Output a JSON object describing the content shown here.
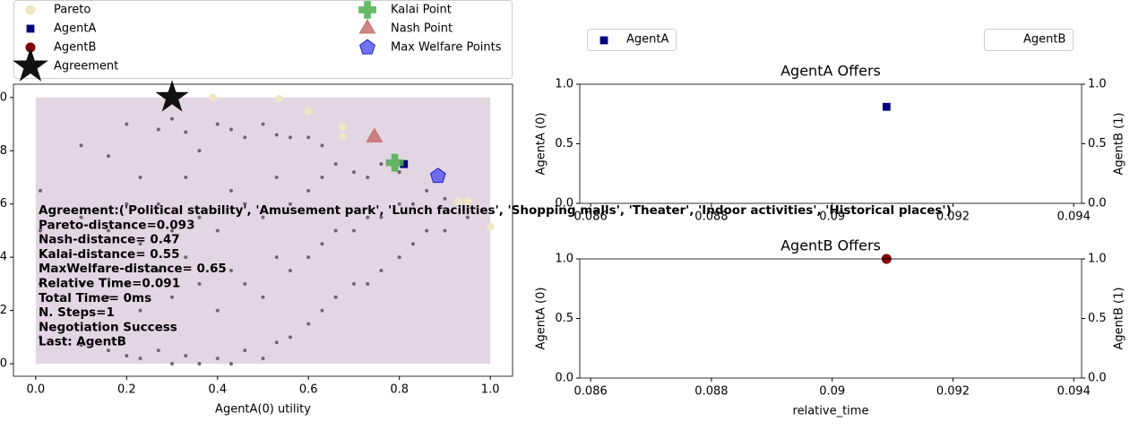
{
  "chart_data": [
    {
      "type": "scatter",
      "xlabel": "AgentA(0) utility",
      "xlim": [
        -0.049,
        1.049
      ],
      "ylim": [
        -0.047,
        1.05
      ],
      "xticks": [
        {
          "value": 0,
          "label": "0.0"
        },
        {
          "value": 0.2,
          "label": "0.2"
        },
        {
          "value": 0.4,
          "label": "0.4"
        },
        {
          "value": 0.6,
          "label": "0.6"
        },
        {
          "value": 0.8,
          "label": "0.8"
        },
        {
          "value": 1,
          "label": "1.0"
        }
      ],
      "yticks": [
        {
          "value": 0,
          "label": "0.0"
        },
        {
          "value": 0.2,
          "label": "0.2"
        },
        {
          "value": 0.4,
          "label": "0.4"
        },
        {
          "value": 0.6,
          "label": "0.6"
        },
        {
          "value": 0.8,
          "label": "0.8"
        },
        {
          "value": 1,
          "label": "1.0"
        }
      ],
      "region_color": "#e2d6e2",
      "series": [
        {
          "color": "#6e6670",
          "marker": "dot",
          "x": [
            0.01,
            0.01,
            0.01,
            0.01,
            0.1,
            0.1,
            0.1,
            0.1,
            0.16,
            0.16,
            0.16,
            0.16,
            0.2,
            0.2,
            0.2,
            0.2,
            0.23,
            0.23,
            0.23,
            0.23,
            0.27,
            0.27,
            0.27,
            0.27,
            0.3,
            0.3,
            0.3,
            0.3,
            0.33,
            0.33,
            0.33,
            0.33,
            0.36,
            0.36,
            0.36,
            0.36,
            0.4,
            0.4,
            0.4,
            0.4,
            0.43,
            0.43,
            0.43,
            0.43,
            0.46,
            0.46,
            0.46,
            0.46,
            0.5,
            0.5,
            0.5,
            0.5,
            0.53,
            0.53,
            0.53,
            0.53,
            0.56,
            0.56,
            0.56,
            0.56,
            0.6,
            0.6,
            0.6,
            0.6,
            0.63,
            0.63,
            0.63,
            0.63,
            0.66,
            0.66,
            0.66,
            0.7,
            0.7,
            0.7,
            0.73,
            0.73,
            0.73,
            0.76,
            0.76,
            0.76,
            0.8,
            0.8,
            0.8,
            0.83,
            0.83,
            0.86,
            0.86,
            0.9,
            0.9,
            0.95,
            0.95
          ],
          "values": [
            0.1,
            0.3,
            0.5,
            0.65,
            0.07,
            0.3,
            0.55,
            0.82,
            0.05,
            0.25,
            0.5,
            0.78,
            0.03,
            0.3,
            0.6,
            0.9,
            0.02,
            0.2,
            0.45,
            0.7,
            0.05,
            0.35,
            0.6,
            0.88,
            0.0,
            0.25,
            0.5,
            0.92,
            0.03,
            0.4,
            0.7,
            0.87,
            0.0,
            0.3,
            0.55,
            0.8,
            0.02,
            0.2,
            0.5,
            0.9,
            0.0,
            0.35,
            0.65,
            0.88,
            0.05,
            0.3,
            0.6,
            0.85,
            0.02,
            0.25,
            0.55,
            0.9,
            0.08,
            0.4,
            0.7,
            0.86,
            0.1,
            0.35,
            0.6,
            0.85,
            0.15,
            0.4,
            0.65,
            0.85,
            0.2,
            0.45,
            0.7,
            0.82,
            0.25,
            0.5,
            0.75,
            0.3,
            0.5,
            0.72,
            0.3,
            0.55,
            0.7,
            0.35,
            0.55,
            0.75,
            0.4,
            0.6,
            0.72,
            0.45,
            0.6,
            0.5,
            0.65,
            0.5,
            0.62,
            0.55,
            0.6
          ]
        },
        {
          "name": "Pareto",
          "color": "#efe6c4",
          "marker": "circle",
          "x": [
            0.39,
            0.535,
            0.6,
            0.675,
            0.675,
            0.93,
            0.95,
            1.0
          ],
          "values": [
            1.0,
            0.995,
            0.95,
            0.89,
            0.855,
            0.61,
            0.61,
            0.515
          ]
        },
        {
          "name": "AgentA",
          "color": "#000080",
          "marker": "square",
          "x": [
            0.81
          ],
          "values": [
            0.75
          ]
        },
        {
          "name": "AgentB",
          "color": "#800000",
          "marker": "circle",
          "x": [
            0.3
          ],
          "values": [
            1.0
          ]
        },
        {
          "name": "Agreement",
          "color": "#111111",
          "marker": "star",
          "x": [
            0.3
          ],
          "values": [
            1.0
          ]
        },
        {
          "name": "Kalai Point",
          "color": "#4cae4c",
          "marker": "plus",
          "x": [
            0.79
          ],
          "values": [
            0.755
          ]
        },
        {
          "name": "Nash Point",
          "color": "#c87070",
          "marker": "triangle",
          "x": [
            0.745
          ],
          "values": [
            0.85
          ]
        },
        {
          "name": "Max Welfare Points",
          "color": "#5a5af0",
          "marker": "pentagon",
          "x": [
            0.885
          ],
          "values": [
            0.705
          ]
        }
      ],
      "annotations": [
        "Agreement:('Political stability', 'Amusement park', 'Lunch facilities', 'Shopping malls', 'Theater', 'Indoor activities', 'Historical places')",
        "Pareto-distance=0.093",
        "Nash-distance= 0.47",
        "Kalai-distance= 0.55",
        "MaxWelfare-distance= 0.65",
        "Relative Time=0.091",
        "Total Time= 0ms",
        "N. Steps=1",
        "Negotiation Success",
        "Last: AgentB"
      ]
    },
    {
      "type": "scatter",
      "title": "AgentA Offers",
      "ylabel": "AgentA (0)",
      "y2label": "AgentB (1)",
      "xlim": [
        0.08582,
        0.09413
      ],
      "ylim": [
        0,
        1.0
      ],
      "y2lim": [
        0,
        1.0
      ],
      "xticks": [
        0.086,
        0.088,
        0.09,
        0.092,
        0.094
      ],
      "yticks": [
        {
          "value": 0,
          "label": "0.0"
        },
        {
          "value": 0.5,
          "label": "0.5"
        },
        {
          "value": 1,
          "label": "1.0"
        }
      ],
      "y2ticks": [
        {
          "value": 0,
          "label": "0.0"
        },
        {
          "value": 0.5,
          "label": "0.5"
        },
        {
          "value": 1,
          "label": "1.0"
        }
      ],
      "series": [
        {
          "name": "AgentA",
          "color": "#000080",
          "marker": "square",
          "x": [
            0.0909
          ],
          "values": [
            0.81
          ]
        }
      ]
    },
    {
      "type": "scatter",
      "title": "AgentB Offers",
      "ylabel": "AgentA (0)",
      "y2label": "AgentB (1)",
      "xlabel": "relative_time",
      "xlim": [
        0.08582,
        0.09413
      ],
      "ylim": [
        0,
        1.0
      ],
      "y2lim": [
        0,
        1.0
      ],
      "xticks": [
        0.086,
        0.088,
        0.09,
        0.092,
        0.094
      ],
      "yticks": [
        {
          "value": 0,
          "label": "0.0"
        },
        {
          "value": 0.5,
          "label": "0.5"
        },
        {
          "value": 1,
          "label": "1.0"
        }
      ],
      "y2ticks": [
        {
          "value": 0,
          "label": "0.0"
        },
        {
          "value": 0.5,
          "label": "0.5"
        },
        {
          "value": 1,
          "label": "1.0"
        }
      ],
      "series": [
        {
          "name": "AgentB",
          "color": "#800000",
          "marker": "circle",
          "x": [
            0.0909
          ],
          "values": [
            1.0
          ]
        }
      ]
    }
  ]
}
